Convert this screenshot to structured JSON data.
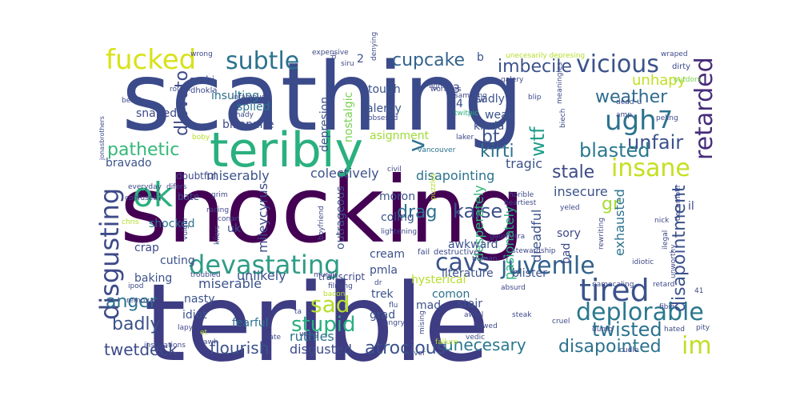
{
  "words": [
    {
      "text": "scathing",
      "color": "#3b4a8a"
    },
    {
      "text": "shocking",
      "color": "#440154"
    },
    {
      "text": "terible",
      "color": "#3e3c82"
    },
    {
      "text": "teribly",
      "color": "#2ab07f"
    },
    {
      "text": "devastating",
      "color": "#2e9c86"
    },
    {
      "text": "juvenile",
      "color": "#33638d"
    },
    {
      "text": "insane",
      "color": "#c5e021"
    },
    {
      "text": "tired",
      "color": "#3b528b"
    },
    {
      "text": "deplorable",
      "color": "#2a788e"
    },
    {
      "text": "disgusting",
      "color": "#3e4a89"
    },
    {
      "text": "fucked",
      "color": "#d8e219"
    },
    {
      "text": "subtle",
      "color": "#2c728e"
    },
    {
      "text": "vicious",
      "color": "#3b528b"
    },
    {
      "text": "ugh",
      "color": "#2c728e"
    },
    {
      "text": "7",
      "color": "#2c728e"
    },
    {
      "text": "retarded",
      "color": "#472c7a"
    },
    {
      "text": "ok",
      "color": "#2ab07f"
    },
    {
      "text": "cavs",
      "color": "#3b528b"
    },
    {
      "text": "sad",
      "color": "#b5de2b"
    },
    {
      "text": "im",
      "color": "#c0df25"
    },
    {
      "text": "atrocious",
      "color": "#3b528b"
    },
    {
      "text": "twisted",
      "color": "#2c728e"
    },
    {
      "text": "cupcake",
      "color": "#33638d"
    },
    {
      "text": "imbecile",
      "color": "#3b528b"
    },
    {
      "text": "unhapy",
      "color": "#c2df23"
    },
    {
      "text": "weather",
      "color": "#2f6b8e"
    },
    {
      "text": "unfair",
      "color": "#3b528b"
    },
    {
      "text": "blasted",
      "color": "#2a788e"
    },
    {
      "text": "stale",
      "color": "#3e4989"
    },
    {
      "text": "pathetic",
      "color": "#35b779"
    },
    {
      "text": "dlovato",
      "color": "#3e4a89"
    },
    {
      "text": "kirti",
      "color": "#2c728e"
    },
    {
      "text": "wtf",
      "color": "#1f9e89"
    },
    {
      "text": "bt",
      "color": "#3b528b"
    },
    {
      "text": "v",
      "color": "#2c728e"
    },
    {
      "text": "kaise",
      "color": "#3b528b"
    },
    {
      "text": "drag",
      "color": "#2c728e"
    },
    {
      "text": "gr",
      "color": "#a5db36"
    },
    {
      "text": "disapointment",
      "color": "#3b528b"
    },
    {
      "text": "stupid",
      "color": "#2ab07f"
    },
    {
      "text": "unecesary",
      "color": "#2a788e"
    },
    {
      "text": "disapointed",
      "color": "#2c728e"
    },
    {
      "text": "flourish",
      "color": "#3b528b"
    },
    {
      "text": "twetdeck",
      "color": "#3e4a89"
    },
    {
      "text": "anger",
      "color": "#2c728e"
    },
    {
      "text": "badly",
      "color": "#3b528b"
    },
    {
      "text": "disgusted",
      "color": "#3e4a89"
    },
    {
      "text": "ruthles",
      "color": "#2c728e"
    },
    {
      "text": "unlikely",
      "color": "#3b528b"
    },
    {
      "text": "miserable",
      "color": "#3b528b"
    },
    {
      "text": "mileycyrus",
      "color": "#3e4a89"
    },
    {
      "text": "miserably",
      "color": "#3b528b"
    },
    {
      "text": "colectively",
      "color": "#3b528b"
    },
    {
      "text": "disapointing",
      "color": "#2c728e"
    },
    {
      "text": "tragic",
      "color": "#3b528b"
    },
    {
      "text": "insecure",
      "color": "#3b528b"
    },
    {
      "text": "desperately",
      "color": "#35b779"
    },
    {
      "text": "pasionately",
      "color": "#2ab07f"
    },
    {
      "text": "exhausted",
      "color": "#2c728e"
    },
    {
      "text": "dreadful",
      "color": "#3b528b"
    },
    {
      "text": "bravado",
      "color": "#3b528b"
    },
    {
      "text": "snaped",
      "color": "#3e4a89"
    },
    {
      "text": "spiled",
      "color": "#2c728e"
    },
    {
      "text": "insulting",
      "color": "#2c728e"
    },
    {
      "text": "bilionaire",
      "color": "#3e4a89"
    },
    {
      "text": "depresion",
      "color": "#3b528b"
    },
    {
      "text": "nostalgic",
      "color": "#7ad151"
    },
    {
      "text": "alergy",
      "color": "#3b528b"
    },
    {
      "text": "tough",
      "color": "#3b528b"
    },
    {
      "text": "sadly",
      "color": "#3b528b"
    },
    {
      "text": "weak",
      "color": "#3b528b"
    },
    {
      "text": "asignment",
      "color": "#a0da39"
    },
    {
      "text": "kinda",
      "color": "#3b528b"
    },
    {
      "text": "sushi",
      "color": "#3b528b"
    },
    {
      "text": "dhokla",
      "color": "#3e4a89"
    },
    {
      "text": "wrong",
      "color": "#3e4a89"
    },
    {
      "text": "infamous",
      "color": "#3e4a89"
    },
    {
      "text": "shady",
      "color": "#3e4a89"
    },
    {
      "text": "expensive",
      "color": "#3e4a89"
    },
    {
      "text": "siru",
      "color": "#3e4a89"
    },
    {
      "text": "denying",
      "color": "#3e4a89"
    },
    {
      "text": "worthles",
      "color": "#3e4a89"
    },
    {
      "text": "samsung",
      "color": "#3e4a89"
    },
    {
      "text": "obsesed",
      "color": "#3e4a89"
    },
    {
      "text": "twitpic",
      "color": "#2ab07f"
    },
    {
      "text": "galery",
      "color": "#3e4a89"
    },
    {
      "text": "unecesarily depresing",
      "color": "#b5de2b"
    },
    {
      "text": "wraped",
      "color": "#3e4a89"
    },
    {
      "text": "outdors",
      "color": "#7ad151"
    },
    {
      "text": "dirty",
      "color": "#3e4a89"
    },
    {
      "text": "blip",
      "color": "#3e4a89"
    },
    {
      "text": "meaningles",
      "color": "#3e4a89"
    },
    {
      "text": "biech",
      "color": "#3e4a89"
    },
    {
      "text": "dead",
      "color": "#3e4a89"
    },
    {
      "text": "u",
      "color": "#3e4a89"
    },
    {
      "text": "peling",
      "color": "#3e4a89"
    },
    {
      "text": "amp",
      "color": "#3e4a89"
    },
    {
      "text": "laker",
      "color": "#3e4a89"
    },
    {
      "text": "vancouver",
      "color": "#2c728e"
    },
    {
      "text": "civil",
      "color": "#3e4a89"
    },
    {
      "text": "boby",
      "color": "#b5de2b"
    },
    {
      "text": "everyday",
      "color": "#3e4a89"
    },
    {
      "text": "doubtful",
      "color": "#3e4a89"
    },
    {
      "text": "difers",
      "color": "#3e4a89"
    },
    {
      "text": "confused",
      "color": "#3e4a89"
    },
    {
      "text": "grim",
      "color": "#3e4a89"
    },
    {
      "text": "racing",
      "color": "#3e4a89"
    },
    {
      "text": "bate",
      "color": "#3e4a89"
    },
    {
      "text": "shocked",
      "color": "#2c728e"
    },
    {
      "text": "crap",
      "color": "#3e4a89"
    },
    {
      "text": "chris",
      "color": "#b5de2b"
    },
    {
      "text": "conan",
      "color": "#3e4a89"
    },
    {
      "text": "uk",
      "color": "#3b528b"
    },
    {
      "text": "vulgar",
      "color": "#3e4a89"
    },
    {
      "text": "kilers",
      "color": "#3e4a89"
    },
    {
      "text": "boyfriend",
      "color": "#3e4a89"
    },
    {
      "text": "outrageous",
      "color": "#3b528b"
    },
    {
      "text": "moron",
      "color": "#3b528b"
    },
    {
      "text": "coling",
      "color": "#3b528b"
    },
    {
      "text": "lightening",
      "color": "#3e4a89"
    },
    {
      "text": "puzzles",
      "color": "#b5de2b"
    },
    {
      "text": "cream",
      "color": "#3b528b"
    },
    {
      "text": "pmla",
      "color": "#3b528b"
    },
    {
      "text": "fail",
      "color": "#3e4a89"
    },
    {
      "text": "destructive",
      "color": "#3e4a89"
    },
    {
      "text": "hysterical",
      "color": "#b5de2b"
    },
    {
      "text": "comon",
      "color": "#2c728e"
    },
    {
      "text": "awkward",
      "color": "#3b528b"
    },
    {
      "text": "heartiest",
      "color": "#3e4a89"
    },
    {
      "text": "horible",
      "color": "#3e4a89"
    },
    {
      "text": "gaumutra",
      "color": "#3e4a89"
    },
    {
      "text": "tioman",
      "color": "#3e4a89"
    },
    {
      "text": "literature",
      "color": "#3b528b"
    },
    {
      "text": "blister",
      "color": "#3b528b"
    },
    {
      "text": "stewardship",
      "color": "#3e4a89"
    },
    {
      "text": "yeled",
      "color": "#3e4a89"
    },
    {
      "text": "sory",
      "color": "#3e4a89"
    },
    {
      "text": "bad",
      "color": "#3e4a89"
    },
    {
      "text": "rewriting",
      "color": "#3e4a89"
    },
    {
      "text": "nick",
      "color": "#3e4a89"
    },
    {
      "text": "ilegal",
      "color": "#3e4a89"
    },
    {
      "text": "il",
      "color": "#3e4a89"
    },
    {
      "text": "december",
      "color": "#3e4a89"
    },
    {
      "text": "idiotic",
      "color": "#3e4a89"
    },
    {
      "text": "unworthy",
      "color": "#3e4a89"
    },
    {
      "text": "retard",
      "color": "#3e4a89"
    },
    {
      "text": "namecaling",
      "color": "#3e4a89"
    },
    {
      "text": "fibies",
      "color": "#3e4a89"
    },
    {
      "text": "pity",
      "color": "#3e4a89"
    },
    {
      "text": "hated",
      "color": "#3e4a89"
    },
    {
      "text": "cudle",
      "color": "#3e4a89"
    },
    {
      "text": "dumb",
      "color": "#3e4a89"
    },
    {
      "text": "cruel",
      "color": "#3e4a89"
    },
    {
      "text": "steak",
      "color": "#3e4a89"
    },
    {
      "text": "flawed",
      "color": "#3e4a89"
    },
    {
      "text": "awful",
      "color": "#3e4a89"
    },
    {
      "text": "absurd",
      "color": "#3e4a89"
    },
    {
      "text": "vedic",
      "color": "#3e4a89"
    },
    {
      "text": "mising",
      "color": "#3e4a89"
    },
    {
      "text": "failure",
      "color": "#b5de2b"
    },
    {
      "text": "never",
      "color": "#3e4a89"
    },
    {
      "text": "angry",
      "color": "#3e4a89"
    },
    {
      "text": "flu",
      "color": "#3e4a89"
    },
    {
      "text": "grad",
      "color": "#3b528b"
    },
    {
      "text": "mad",
      "color": "#3b528b"
    },
    {
      "text": "stair",
      "color": "#3b528b"
    },
    {
      "text": "trek",
      "color": "#3b528b"
    },
    {
      "text": "dr",
      "color": "#3e4a89"
    },
    {
      "text": "fearful",
      "color": "#2c728e"
    },
    {
      "text": "late",
      "color": "#3e4a89"
    },
    {
      "text": "using",
      "color": "#3e4a89"
    },
    {
      "text": "ta",
      "color": "#3e4a89"
    },
    {
      "text": "bacon",
      "color": "#b5de2b"
    },
    {
      "text": "transcript",
      "color": "#3e4a89"
    },
    {
      "text": "filming",
      "color": "#3e4a89"
    },
    {
      "text": "murali",
      "color": "#3e4a89"
    },
    {
      "text": "troubled",
      "color": "#3e4a89"
    },
    {
      "text": "cuting",
      "color": "#3b528b"
    },
    {
      "text": "baking",
      "color": "#3b528b"
    },
    {
      "text": "ipod",
      "color": "#3e4a89"
    },
    {
      "text": "removal",
      "color": "#3e4a89"
    },
    {
      "text": "nasty",
      "color": "#3b528b"
    },
    {
      "text": "idiot",
      "color": "#3b528b"
    },
    {
      "text": "lapy",
      "color": "#3e4a89"
    },
    {
      "text": "et",
      "color": "#b5de2b"
    },
    {
      "text": "awh",
      "color": "#3e4a89"
    },
    {
      "text": "instalations",
      "color": "#3e4a89"
    },
    {
      "text": "jonasbrothers",
      "color": "#3e4a89"
    },
    {
      "text": "beach",
      "color": "#3e4a89"
    },
    {
      "text": "rough",
      "color": "#3e4a89"
    },
    {
      "text": "2",
      "color": "#3b528b"
    },
    {
      "text": "3",
      "color": "#3e4a89"
    },
    {
      "text": "4",
      "color": "#3b528b"
    },
    {
      "text": "w",
      "color": "#3e4a89"
    },
    {
      "text": "b",
      "color": "#3b528b"
    },
    {
      "text": "agh",
      "color": "#3e4a89"
    },
    {
      "text": "di",
      "color": "#3e4a89"
    },
    {
      "text": "41",
      "color": "#3e4a89"
    }
  ]
}
